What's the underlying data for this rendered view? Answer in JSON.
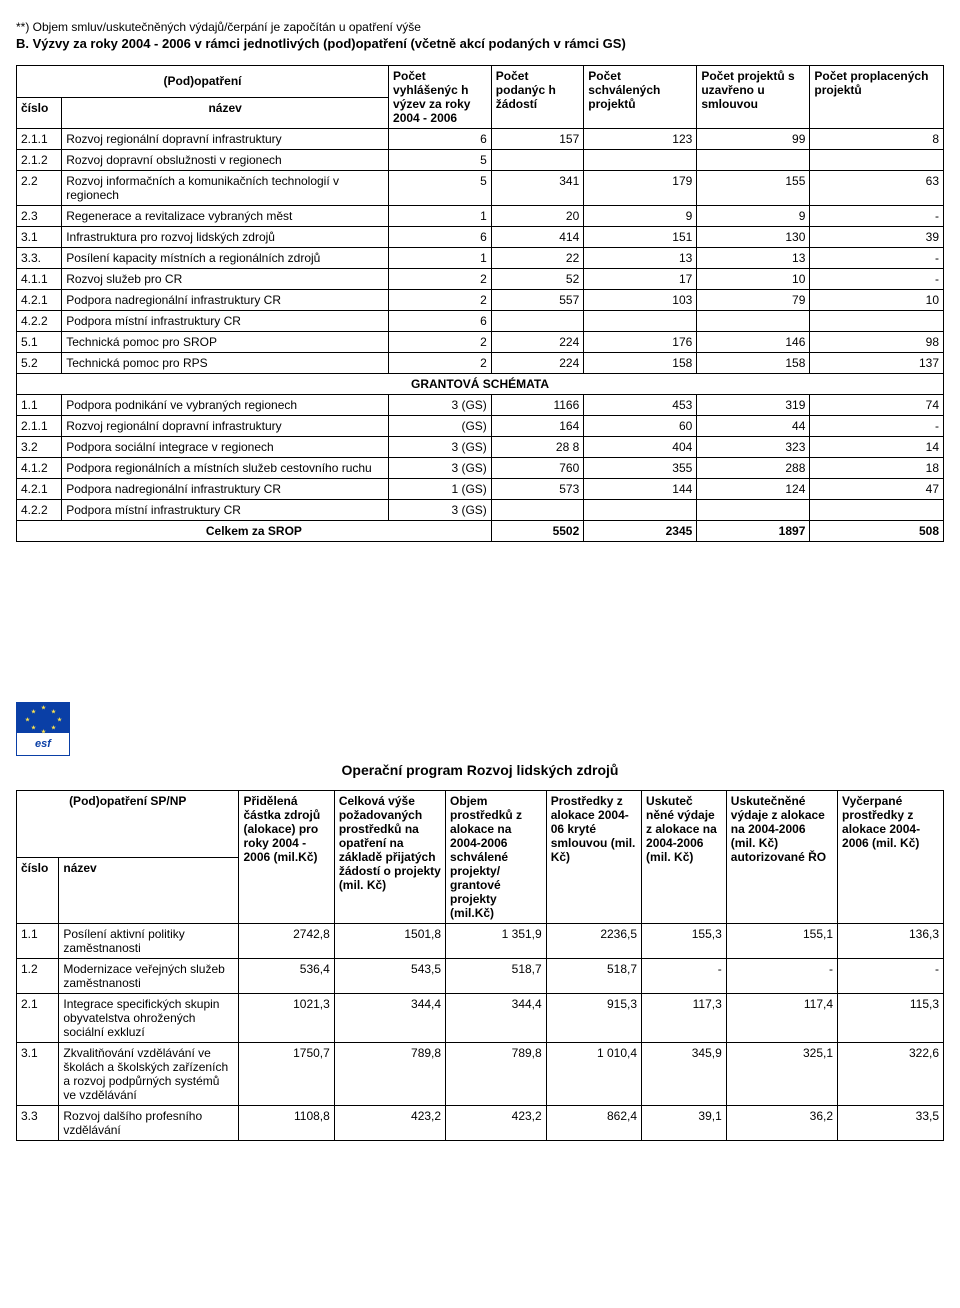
{
  "doc": {
    "note": "**) Objem smluv/uskutečněných výdajů/čerpání je započítán u opatření výše",
    "sectionB": "B. Výzvy za roky 2004 - 2006 v rámci jednotlivých (pod)opatření (včetně akcí podaných v rámci GS)"
  },
  "t1": {
    "head": {
      "pod": "(Pod)opatření",
      "cislo": "číslo",
      "nazev": "název",
      "h3": "Počet vyhlášenýc h výzev za roky 2004 - 2006",
      "h4": "Počet podanýc h žádostí",
      "h5": "Počet schválených projektů",
      "h6": "Počet projektů s uzavřeno u smlouvou",
      "h7": "Počet proplacených projektů"
    },
    "rows": [
      {
        "id": "2.1.1",
        "name": "Rozvoj regionální dopravní infrastruktury",
        "c3": "6",
        "c4": "157",
        "c5": "123",
        "c6": "99",
        "c7": "8"
      },
      {
        "id": "2.1.2",
        "name": "Rozvoj dopravní obslužnosti v regionech",
        "c3": "5",
        "c4": "",
        "c5": "",
        "c6": "",
        "c7": ""
      },
      {
        "id": "2.2",
        "name": "Rozvoj informačních a komunikačních technologií v regionech",
        "c3": "5",
        "c4": "341",
        "c5": "179",
        "c6": "155",
        "c7": "63"
      },
      {
        "id": "2.3",
        "name": "Regenerace a revitalizace vybraných měst",
        "c3": "1",
        "c4": "20",
        "c5": "9",
        "c6": "9",
        "c7": "-"
      },
      {
        "id": "3.1",
        "name": "Infrastruktura pro rozvoj lidských zdrojů",
        "c3": "6",
        "c4": "414",
        "c5": "151",
        "c6": "130",
        "c7": "39"
      },
      {
        "id": "3.3.",
        "name": "Posílení kapacity místních a regionálních zdrojů",
        "c3": "1",
        "c4": "22",
        "c5": "13",
        "c6": "13",
        "c7": "-"
      },
      {
        "id": "4.1.1",
        "name": "Rozvoj služeb pro CR",
        "c3": "2",
        "c4": "52",
        "c5": "17",
        "c6": "10",
        "c7": "-"
      },
      {
        "id": "4.2.1",
        "name": "Podpora nadregionální infrastruktury CR",
        "c3": "2",
        "c4": "557",
        "c5": "103",
        "c6": "79",
        "c7": "10"
      },
      {
        "id": "4.2.2",
        "name": "Podpora místní infrastruktury CR",
        "c3": "6",
        "c4": "",
        "c5": "",
        "c6": "",
        "c7": ""
      },
      {
        "id": "5.1",
        "name": "Technická pomoc pro SROP",
        "c3": "2",
        "c4": "224",
        "c5": "176",
        "c6": "146",
        "c7": "98"
      },
      {
        "id": "5.2",
        "name": "Technická pomoc pro RPS",
        "c3": "2",
        "c4": "224",
        "c5": "158",
        "c6": "158",
        "c7": "137"
      }
    ],
    "gsLabel": "GRANTOVÁ SCHÉMATA",
    "gs": [
      {
        "id": "1.1",
        "name": "Podpora podnikání ve vybraných regionech",
        "c3": "3 (GS)",
        "c4": "1166",
        "c5": "453",
        "c6": "319",
        "c7": "74"
      },
      {
        "id": "2.1.1",
        "name": "Rozvoj regionální dopravní infrastruktury",
        "c3": "(GS)",
        "c4": "164",
        "c5": "60",
        "c6": "44",
        "c7": "-"
      },
      {
        "id": "3.2",
        "name": "Podpora sociální integrace v regionech",
        "c3": "3 (GS)",
        "c4": "28 8",
        "c5": "404",
        "c6": "323",
        "c7": "14"
      },
      {
        "id": "4.1.2",
        "name": "Podpora regionálních a místních služeb cestovního ruchu",
        "c3": "3 (GS)",
        "c4": "760",
        "c5": "355",
        "c6": "288",
        "c7": "18"
      },
      {
        "id": "4.2.1",
        "name": "Podpora nadregionální infrastruktury CR",
        "c3": "1 (GS)",
        "c4": "573",
        "c5": "144",
        "c6": "124",
        "c7": "47"
      },
      {
        "id": "4.2.2",
        "name": "Podpora místní infrastruktury CR",
        "c3": "3 (GS)",
        "c4": "",
        "c5": "",
        "c6": "",
        "c7": ""
      }
    ],
    "total": {
      "label": "Celkem za SROP",
      "c4": "5502",
      "c5": "2345",
      "c6": "1897",
      "c7": "508"
    }
  },
  "esfLabel": "esf",
  "progTitle": "Operační program Rozvoj lidských zdrojů",
  "t2": {
    "head": {
      "pod": "(Pod)opatření SP/NP",
      "cislo": "číslo",
      "nazev": "název",
      "h3": "Přidělená částka zdrojů (alokace) pro roky 2004 - 2006 (mil.Kč)",
      "h4": "Celková výše požadovaných prostředků na opatření na základě přijatých žádostí o projekty (mil. Kč)",
      "h5": "Objem prostředků z alokace na 2004-2006 schválené projekty/ grantové projekty (mil.Kč)",
      "h6": "Prostředky z alokace 2004-06 kryté smlouvou (mil. Kč)",
      "h7": "Uskuteč něné výdaje z alokace na 2004-2006 (mil. Kč)",
      "h8": "Uskutečněné výdaje z alokace na 2004-2006 (mil. Kč) autorizované ŘO",
      "h9": "Vyčerpané prostředky z alokace 2004-2006 (mil. Kč)"
    },
    "rows": [
      {
        "id": "1.1",
        "name": "Posílení aktivní politiky zaměstnanosti",
        "c3": "2742,8",
        "c4": "1501,8",
        "c5": "1 351,9",
        "c6": "2236,5",
        "c7": "155,3",
        "c8": "155,1",
        "c9": "136,3"
      },
      {
        "id": "1.2",
        "name": "Modernizace veřejných služeb zaměstnanosti",
        "c3": "536,4",
        "c4": "543,5",
        "c5": "518,7",
        "c6": "518,7",
        "c7": "-",
        "c8": "-",
        "c9": "-"
      },
      {
        "id": "2.1",
        "name": "Integrace specifických skupin obyvatelstva ohrožených sociální exkluzí",
        "c3": "1021,3",
        "c4": "344,4",
        "c5": "344,4",
        "c6": "915,3",
        "c7": "117,3",
        "c8": "117,4",
        "c9": "115,3"
      },
      {
        "id": "3.1",
        "name": "Zkvalitňování vzdělávání ve školách a školských zařízeních a rozvoj podpůrných systémů ve vzdělávání",
        "c3": "1750,7",
        "c4": "789,8",
        "c5": "789,8",
        "c6": "1 010,4",
        "c7": "345,9",
        "c8": "325,1",
        "c9": "322,6"
      },
      {
        "id": "3.3",
        "name": "Rozvoj dalšího profesního vzdělávání",
        "c3": "1108,8",
        "c4": "423,2",
        "c5": "423,2",
        "c6": "862,4",
        "c7": "39,1",
        "c8": "36,2",
        "c9": "33,5"
      }
    ]
  }
}
